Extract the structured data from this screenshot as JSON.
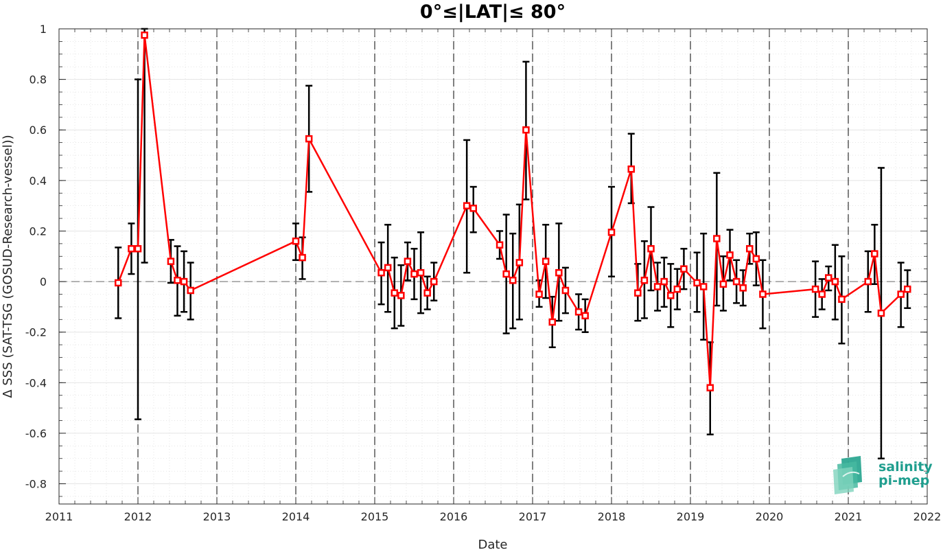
{
  "chart_data": {
    "type": "line",
    "title": "0°≤|LAT|≤ 80°",
    "xlabel": "Date",
    "ylabel": "Δ SSS (SAT-TSG (GOSUD-Research-vessel))",
    "xlim": [
      2011,
      2022
    ],
    "ylim": [
      -0.88,
      1.0
    ],
    "x_ticks": [
      "2011",
      "2012",
      "2013",
      "2014",
      "2015",
      "2016",
      "2017",
      "2018",
      "2019",
      "2020",
      "2021",
      "2022"
    ],
    "y_ticks": [
      "1",
      "0.8",
      "0.6",
      "0.4",
      "0.2",
      "0",
      "-0.2",
      "-0.4",
      "-0.6",
      "-0.8"
    ],
    "grid": true,
    "minor_grid": true,
    "zero_line": 0,
    "year_dividers": [
      2012,
      2013,
      2014,
      2015,
      2016,
      2017,
      2018,
      2019,
      2020,
      2021
    ],
    "line_color": "#ff0000",
    "errorbar_color": "#000000",
    "series": [
      {
        "marker": "square",
        "points": [
          {
            "x": "2011-10",
            "y": -0.005,
            "lo": -0.145,
            "hi": 0.135
          },
          {
            "x": "2011-12",
            "y": 0.13,
            "lo": 0.03,
            "hi": 0.23
          },
          {
            "x": "2012-01",
            "y": 0.13,
            "lo": -0.545,
            "hi": 0.8
          },
          {
            "x": "2012-02",
            "y": 0.975,
            "lo": 0.075,
            "hi": 1.0
          },
          {
            "x": "2012-06",
            "y": 0.08,
            "lo": -0.005,
            "hi": 0.165
          },
          {
            "x": "2012-07",
            "y": 0.005,
            "lo": -0.135,
            "hi": 0.14
          },
          {
            "x": "2012-08",
            "y": 0.0,
            "lo": -0.12,
            "hi": 0.12
          },
          {
            "x": "2012-09",
            "y": -0.035,
            "lo": -0.15,
            "hi": 0.075
          },
          {
            "x": "2014-01",
            "y": 0.16,
            "lo": 0.085,
            "hi": 0.23
          },
          {
            "x": "2014-02",
            "y": 0.095,
            "lo": 0.01,
            "hi": 0.175
          },
          {
            "x": "2014-03",
            "y": 0.565,
            "lo": 0.355,
            "hi": 0.775
          },
          {
            "x": "2015-02",
            "y": 0.035,
            "lo": -0.09,
            "hi": 0.155
          },
          {
            "x": "2015-03",
            "y": 0.055,
            "lo": -0.12,
            "hi": 0.225
          },
          {
            "x": "2015-04",
            "y": -0.045,
            "lo": -0.185,
            "hi": 0.095
          },
          {
            "x": "2015-05",
            "y": -0.055,
            "lo": -0.175,
            "hi": 0.065
          },
          {
            "x": "2015-06",
            "y": 0.08,
            "lo": 0.005,
            "hi": 0.155
          },
          {
            "x": "2015-07",
            "y": 0.03,
            "lo": -0.07,
            "hi": 0.13
          },
          {
            "x": "2015-08",
            "y": 0.035,
            "lo": -0.125,
            "hi": 0.195
          },
          {
            "x": "2015-09",
            "y": -0.045,
            "lo": -0.11,
            "hi": 0.02
          },
          {
            "x": "2015-10",
            "y": 0.0,
            "lo": -0.075,
            "hi": 0.075
          },
          {
            "x": "2016-03",
            "y": 0.3,
            "lo": 0.035,
            "hi": 0.56
          },
          {
            "x": "2016-04",
            "y": 0.29,
            "lo": 0.195,
            "hi": 0.375
          },
          {
            "x": "2016-08",
            "y": 0.145,
            "lo": 0.09,
            "hi": 0.2
          },
          {
            "x": "2016-09",
            "y": 0.03,
            "lo": -0.205,
            "hi": 0.265
          },
          {
            "x": "2016-10",
            "y": 0.005,
            "lo": -0.185,
            "hi": 0.19
          },
          {
            "x": "2016-11",
            "y": 0.075,
            "lo": -0.15,
            "hi": 0.305
          },
          {
            "x": "2016-12",
            "y": 0.6,
            "lo": 0.325,
            "hi": 0.87
          },
          {
            "x": "2017-02",
            "y": -0.05,
            "lo": -0.1,
            "hi": 0.005
          },
          {
            "x": "2017-03",
            "y": 0.08,
            "lo": -0.065,
            "hi": 0.225
          },
          {
            "x": "2017-04",
            "y": -0.16,
            "lo": -0.26,
            "hi": -0.06
          },
          {
            "x": "2017-05",
            "y": 0.035,
            "lo": -0.155,
            "hi": 0.23
          },
          {
            "x": "2017-06",
            "y": -0.035,
            "lo": -0.125,
            "hi": 0.055
          },
          {
            "x": "2017-08",
            "y": -0.12,
            "lo": -0.19,
            "hi": -0.05
          },
          {
            "x": "2017-09",
            "y": -0.135,
            "lo": -0.2,
            "hi": -0.07
          },
          {
            "x": "2018-01",
            "y": 0.195,
            "lo": 0.02,
            "hi": 0.375
          },
          {
            "x": "2018-04",
            "y": 0.445,
            "lo": 0.31,
            "hi": 0.585
          },
          {
            "x": "2018-05",
            "y": -0.045,
            "lo": -0.155,
            "hi": 0.07
          },
          {
            "x": "2018-06",
            "y": 0.005,
            "lo": -0.145,
            "hi": 0.16
          },
          {
            "x": "2018-07",
            "y": 0.13,
            "lo": -0.035,
            "hi": 0.295
          },
          {
            "x": "2018-08",
            "y": -0.02,
            "lo": -0.115,
            "hi": 0.075
          },
          {
            "x": "2018-09",
            "y": 0.0,
            "lo": -0.1,
            "hi": 0.095
          },
          {
            "x": "2018-10",
            "y": -0.055,
            "lo": -0.18,
            "hi": 0.07
          },
          {
            "x": "2018-11",
            "y": -0.03,
            "lo": -0.11,
            "hi": 0.05
          },
          {
            "x": "2018-12",
            "y": 0.05,
            "lo": -0.03,
            "hi": 0.13
          },
          {
            "x": "2019-02",
            "y": -0.005,
            "lo": -0.12,
            "hi": 0.115
          },
          {
            "x": "2019-03",
            "y": -0.02,
            "lo": -0.23,
            "hi": 0.19
          },
          {
            "x": "2019-04",
            "y": -0.42,
            "lo": -0.605,
            "hi": -0.24
          },
          {
            "x": "2019-05",
            "y": 0.17,
            "lo": -0.095,
            "hi": 0.43
          },
          {
            "x": "2019-06",
            "y": -0.01,
            "lo": -0.115,
            "hi": 0.1
          },
          {
            "x": "2019-07",
            "y": 0.105,
            "lo": 0.005,
            "hi": 0.205
          },
          {
            "x": "2019-08",
            "y": 0.0,
            "lo": -0.085,
            "hi": 0.085
          },
          {
            "x": "2019-09",
            "y": -0.025,
            "lo": -0.095,
            "hi": 0.045
          },
          {
            "x": "2019-10",
            "y": 0.13,
            "lo": 0.07,
            "hi": 0.19
          },
          {
            "x": "2019-11",
            "y": 0.09,
            "lo": -0.015,
            "hi": 0.195
          },
          {
            "x": "2019-12",
            "y": -0.05,
            "lo": -0.185,
            "hi": 0.085
          },
          {
            "x": "2020-08",
            "y": -0.03,
            "lo": -0.14,
            "hi": 0.08
          },
          {
            "x": "2020-09",
            "y": -0.05,
            "lo": -0.11,
            "hi": 0.01
          },
          {
            "x": "2020-10",
            "y": 0.015,
            "lo": -0.035,
            "hi": 0.06
          },
          {
            "x": "2020-11",
            "y": 0.0,
            "lo": -0.15,
            "hi": 0.145
          },
          {
            "x": "2020-12",
            "y": -0.07,
            "lo": -0.245,
            "hi": 0.1
          },
          {
            "x": "2021-04",
            "y": 0.0,
            "lo": -0.12,
            "hi": 0.12
          },
          {
            "x": "2021-05",
            "y": 0.11,
            "lo": -0.01,
            "hi": 0.225
          },
          {
            "x": "2021-06",
            "y": -0.125,
            "lo": -0.7,
            "hi": 0.45
          },
          {
            "x": "2021-09",
            "y": -0.05,
            "lo": -0.18,
            "hi": 0.075
          },
          {
            "x": "2021-10",
            "y": -0.03,
            "lo": -0.105,
            "hi": 0.045
          }
        ]
      }
    ]
  },
  "logo": {
    "line1": "salinity",
    "line2": "pi-mep"
  }
}
